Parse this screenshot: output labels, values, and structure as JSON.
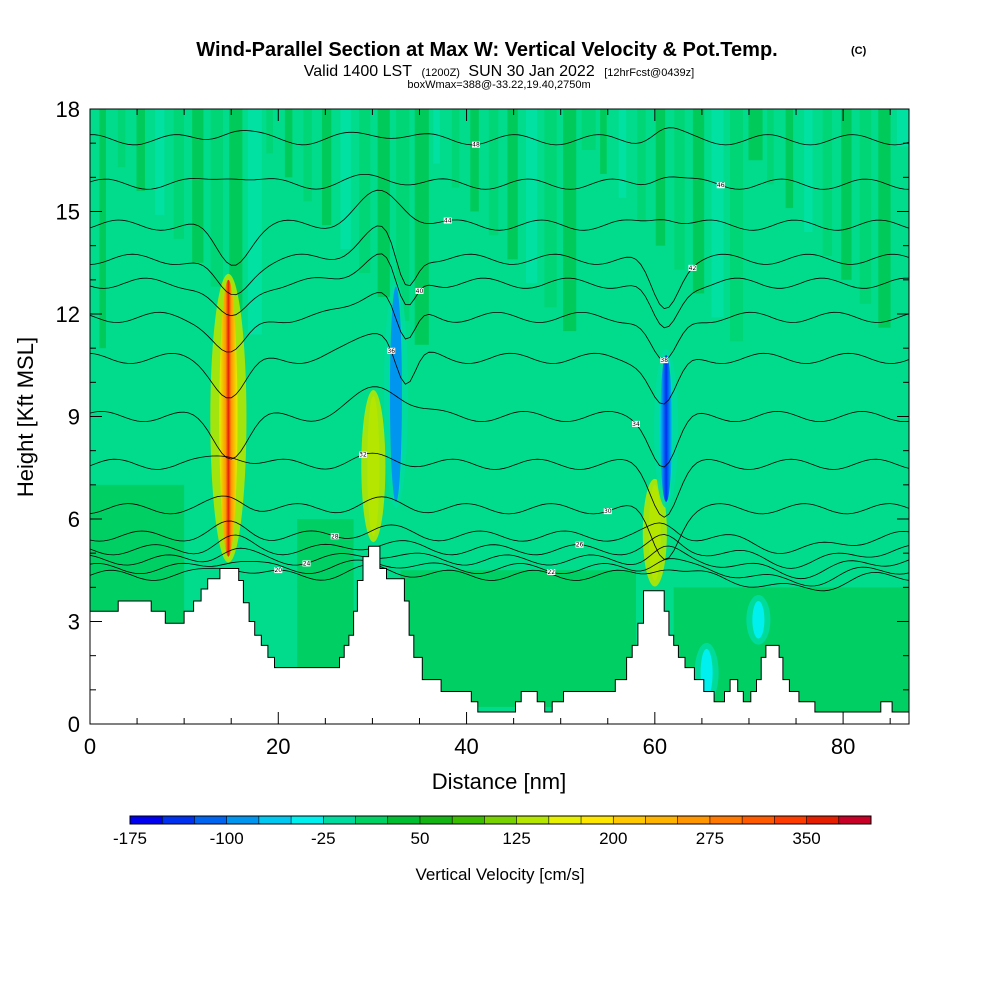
{
  "header": {
    "title": "Wind-Parallel Section at Max W: Vertical Velocity & Pot.Temp.",
    "title_mark": "(C)",
    "subtitle_valid": "Valid 1400 LST",
    "subtitle_z": "(1200Z)",
    "subtitle_date": "SUN 30 Jan 2022",
    "subtitle_fcst": "[12hrFcst@0439z]",
    "box_info": "boxWmax=388@-33.22,19.40,2750m"
  },
  "chart_data": {
    "type": "heatmap",
    "xlabel": "Distance [nm]",
    "ylabel": "Height [Kft MSL]",
    "xlim": [
      0,
      87
    ],
    "ylim": [
      0,
      18
    ],
    "x_ticks": [
      0,
      20,
      40,
      60,
      80
    ],
    "x_tick_labels": [
      "0",
      "20",
      "40",
      "60",
      "80"
    ],
    "y_ticks": [
      0,
      3,
      6,
      9,
      12,
      15,
      18
    ],
    "y_tick_labels": [
      "0",
      "3",
      "6",
      "9",
      "12",
      "15",
      "18"
    ],
    "colorbar": {
      "title": "Vertical Velocity [cm/s]",
      "min": -175,
      "max": 400,
      "step": 25,
      "tick_values": [
        -175,
        -100,
        -25,
        50,
        125,
        200,
        275,
        350
      ],
      "tick_labels": [
        "-175",
        "-100",
        "-25",
        "50",
        "125",
        "200",
        "275",
        "350"
      ],
      "colors": [
        "#0000f0",
        "#0030f0",
        "#0064f0",
        "#0096f0",
        "#00c8f0",
        "#00f0f0",
        "#00dca0",
        "#00d264",
        "#00be32",
        "#14b414",
        "#3cbe00",
        "#78d200",
        "#b4e600",
        "#e6f000",
        "#ffe600",
        "#ffc800",
        "#ffb400",
        "#ff9600",
        "#ff7800",
        "#ff5a00",
        "#ff3c00",
        "#e61e00",
        "#c80028"
      ]
    },
    "terrain_kft": [
      [
        0,
        3.3
      ],
      [
        3,
        3.3
      ],
      [
        3,
        3.6
      ],
      [
        6.5,
        3.6
      ],
      [
        6.5,
        3.3
      ],
      [
        8,
        3.3
      ],
      [
        8,
        2.95
      ],
      [
        10,
        2.95
      ],
      [
        10,
        3.3
      ],
      [
        11,
        3.3
      ],
      [
        11,
        3.6
      ],
      [
        11.8,
        3.6
      ],
      [
        11.8,
        3.95
      ],
      [
        12.5,
        3.95
      ],
      [
        12.5,
        4.25
      ],
      [
        13.8,
        4.25
      ],
      [
        13.8,
        4.55
      ],
      [
        15.8,
        4.55
      ],
      [
        15.8,
        4.2
      ],
      [
        16.3,
        4.2
      ],
      [
        16.3,
        3.55
      ],
      [
        16.9,
        3.55
      ],
      [
        16.9,
        3.0
      ],
      [
        17.5,
        3.0
      ],
      [
        17.5,
        2.6
      ],
      [
        18.2,
        2.6
      ],
      [
        18.2,
        2.3
      ],
      [
        18.9,
        2.3
      ],
      [
        18.9,
        1.95
      ],
      [
        19.6,
        1.95
      ],
      [
        19.6,
        1.65
      ],
      [
        25.5,
        1.65
      ],
      [
        25.5,
        1.65
      ],
      [
        26.5,
        1.65
      ],
      [
        26.5,
        1.95
      ],
      [
        27,
        1.95
      ],
      [
        27,
        2.3
      ],
      [
        27.5,
        2.3
      ],
      [
        27.5,
        2.6
      ],
      [
        28,
        2.6
      ],
      [
        28,
        3.3
      ],
      [
        28.4,
        3.3
      ],
      [
        28.4,
        4.2
      ],
      [
        29,
        4.2
      ],
      [
        29,
        4.9
      ],
      [
        29.6,
        4.9
      ],
      [
        29.6,
        5.2
      ],
      [
        30.8,
        5.2
      ],
      [
        30.8,
        4.55
      ],
      [
        31.5,
        4.55
      ],
      [
        31.5,
        4.25
      ],
      [
        33.4,
        4.25
      ],
      [
        33.4,
        3.6
      ],
      [
        33.9,
        3.6
      ],
      [
        33.9,
        2.6
      ],
      [
        34.4,
        2.6
      ],
      [
        34.4,
        1.95
      ],
      [
        35.3,
        1.95
      ],
      [
        35.3,
        1.3
      ],
      [
        37.3,
        1.3
      ],
      [
        37.3,
        0.95
      ],
      [
        40.5,
        0.95
      ],
      [
        40.5,
        0.65
      ],
      [
        41.2,
        0.65
      ],
      [
        41.2,
        0.35
      ],
      [
        45.2,
        0.35
      ],
      [
        45.2,
        0.65
      ],
      [
        45.8,
        0.65
      ],
      [
        45.8,
        0.95
      ],
      [
        47.5,
        0.95
      ],
      [
        47.5,
        0.65
      ],
      [
        48.3,
        0.65
      ],
      [
        48.3,
        0.35
      ],
      [
        49.1,
        0.35
      ],
      [
        49.1,
        0.65
      ],
      [
        50.3,
        0.65
      ],
      [
        50.3,
        0.95
      ],
      [
        55.8,
        0.95
      ],
      [
        55.8,
        1.3
      ],
      [
        57,
        1.3
      ],
      [
        57,
        1.95
      ],
      [
        57.6,
        1.95
      ],
      [
        57.6,
        2.3
      ],
      [
        58.2,
        2.3
      ],
      [
        58.2,
        2.95
      ],
      [
        58.8,
        2.95
      ],
      [
        58.8,
        3.9
      ],
      [
        61,
        3.9
      ],
      [
        61,
        3.3
      ],
      [
        61.5,
        3.3
      ],
      [
        61.5,
        2.6
      ],
      [
        62,
        2.6
      ],
      [
        62,
        2.3
      ],
      [
        62.5,
        2.3
      ],
      [
        62.5,
        1.95
      ],
      [
        63.2,
        1.95
      ],
      [
        63.2,
        1.65
      ],
      [
        64.2,
        1.65
      ],
      [
        64.2,
        1.3
      ],
      [
        65.2,
        1.3
      ],
      [
        65.2,
        0.95
      ],
      [
        66.3,
        0.95
      ],
      [
        66.3,
        0.65
      ],
      [
        67.4,
        0.65
      ],
      [
        67.4,
        0.95
      ],
      [
        68,
        0.95
      ],
      [
        68,
        1.3
      ],
      [
        68.8,
        1.3
      ],
      [
        68.8,
        0.95
      ],
      [
        69.4,
        0.95
      ],
      [
        69.4,
        0.65
      ],
      [
        70.2,
        0.65
      ],
      [
        70.2,
        0.95
      ],
      [
        70.8,
        0.95
      ],
      [
        70.8,
        1.3
      ],
      [
        71.3,
        1.3
      ],
      [
        71.3,
        1.95
      ],
      [
        71.8,
        1.95
      ],
      [
        71.8,
        2.3
      ],
      [
        73.2,
        2.3
      ],
      [
        73.2,
        1.95
      ],
      [
        73.6,
        1.95
      ],
      [
        73.6,
        1.3
      ],
      [
        74.3,
        1.3
      ],
      [
        74.3,
        0.95
      ],
      [
        75.3,
        0.95
      ],
      [
        75.3,
        0.65
      ],
      [
        77,
        0.65
      ],
      [
        77,
        0.35
      ],
      [
        84,
        0.35
      ],
      [
        84,
        0.65
      ],
      [
        85.2,
        0.65
      ],
      [
        85.2,
        0.35
      ],
      [
        87,
        0.35
      ]
    ],
    "w_features": [
      {
        "x": 14.7,
        "y_bottom": 4.9,
        "y_top": 13.0,
        "value": 388
      },
      {
        "x": 30.1,
        "y_bottom": 5.5,
        "y_top": 9.6,
        "value": 145
      },
      {
        "x": 32.5,
        "y_bottom": 6.5,
        "y_top": 12.8,
        "value": -100
      },
      {
        "x": 60.0,
        "y_bottom": 4.2,
        "y_top": 7.0,
        "value": 140
      },
      {
        "x": 61.2,
        "y_bottom": 6.5,
        "y_top": 10.8,
        "value": -160
      },
      {
        "x": 71.0,
        "y_bottom": 2.5,
        "y_top": 3.6,
        "value": -50
      },
      {
        "x": 65.5,
        "y_bottom": 0.8,
        "y_top": 2.2,
        "value": -40
      }
    ],
    "isentrope_labels": [
      "48",
      "46",
      "44",
      "42",
      "40",
      "38",
      "36",
      "34",
      "32",
      "30",
      "28",
      "26",
      "24",
      "22",
      "20"
    ]
  }
}
